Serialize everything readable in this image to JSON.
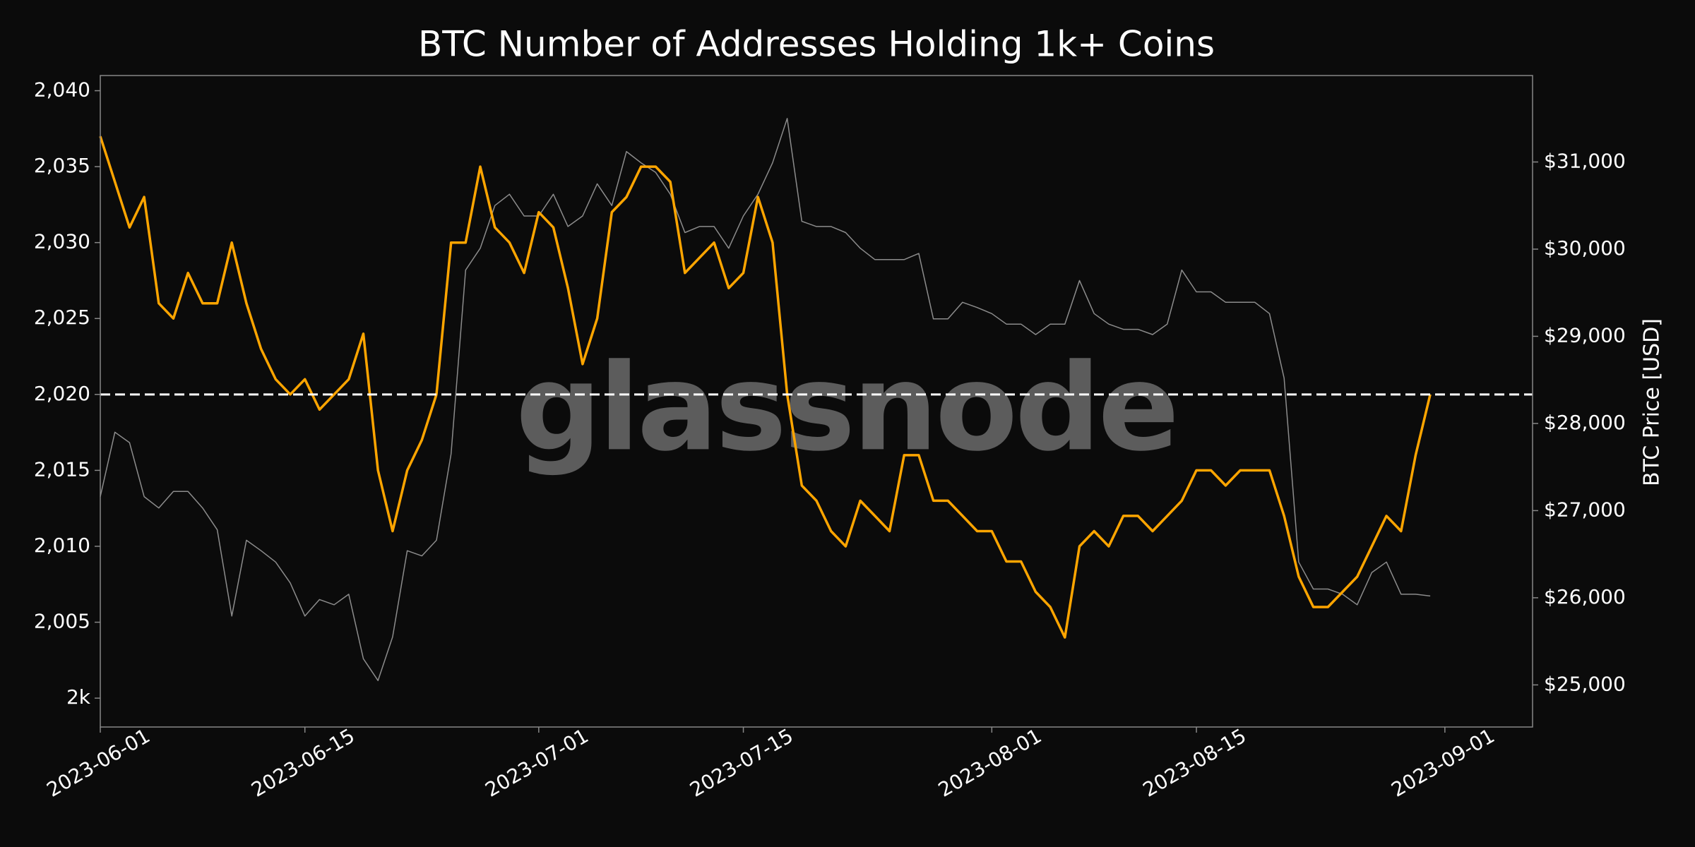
{
  "chart_data": {
    "type": "line",
    "title": "BTC Number of Addresses Holding 1k+ Coins",
    "watermark": "glassnode",
    "y2label": "BTC Price [USD]",
    "x": [
      "2023-06-01",
      "2023-06-02",
      "2023-06-03",
      "2023-06-04",
      "2023-06-05",
      "2023-06-06",
      "2023-06-07",
      "2023-06-08",
      "2023-06-09",
      "2023-06-10",
      "2023-06-11",
      "2023-06-12",
      "2023-06-13",
      "2023-06-14",
      "2023-06-15",
      "2023-06-16",
      "2023-06-17",
      "2023-06-18",
      "2023-06-19",
      "2023-06-20",
      "2023-06-21",
      "2023-06-22",
      "2023-06-23",
      "2023-06-24",
      "2023-06-25",
      "2023-06-26",
      "2023-06-27",
      "2023-06-28",
      "2023-06-29",
      "2023-06-30",
      "2023-07-01",
      "2023-07-02",
      "2023-07-03",
      "2023-07-04",
      "2023-07-05",
      "2023-07-06",
      "2023-07-07",
      "2023-07-08",
      "2023-07-09",
      "2023-07-10",
      "2023-07-11",
      "2023-07-12",
      "2023-07-13",
      "2023-07-14",
      "2023-07-15",
      "2023-07-16",
      "2023-07-17",
      "2023-07-18",
      "2023-07-19",
      "2023-07-20",
      "2023-07-21",
      "2023-07-22",
      "2023-07-23",
      "2023-07-24",
      "2023-07-25",
      "2023-07-26",
      "2023-07-27",
      "2023-07-28",
      "2023-07-29",
      "2023-07-30",
      "2023-07-31",
      "2023-08-01",
      "2023-08-02",
      "2023-08-03",
      "2023-08-04",
      "2023-08-05",
      "2023-08-06",
      "2023-08-07",
      "2023-08-08",
      "2023-08-09",
      "2023-08-10",
      "2023-08-11",
      "2023-08-12",
      "2023-08-13",
      "2023-08-14",
      "2023-08-15",
      "2023-08-16",
      "2023-08-17",
      "2023-08-18",
      "2023-08-19",
      "2023-08-20",
      "2023-08-21",
      "2023-08-22",
      "2023-08-23",
      "2023-08-24",
      "2023-08-25",
      "2023-08-26",
      "2023-08-27",
      "2023-08-28",
      "2023-08-29",
      "2023-08-30",
      "2023-08-31"
    ],
    "series": [
      {
        "color": "#8c8c8c",
        "axis": "y2",
        "values": [
          27160,
          27900,
          27780,
          27160,
          27030,
          27220,
          27220,
          27030,
          26780,
          25790,
          26660,
          26540,
          26410,
          26170,
          25790,
          25980,
          25920,
          26040,
          25300,
          25050,
          25550,
          26540,
          26480,
          26660,
          27650,
          29760,
          30010,
          30500,
          30630,
          30380,
          30380,
          30630,
          30260,
          30380,
          30750,
          30500,
          31120,
          30990,
          30880,
          30630,
          30190,
          30260,
          30260,
          30010,
          30380,
          30630,
          30990,
          31500,
          30320,
          30260,
          30260,
          30190,
          30010,
          29880,
          29880,
          29880,
          29950,
          29200,
          29200,
          29390,
          29330,
          29260,
          29140,
          29140,
          29020,
          29140,
          29140,
          29640,
          29260,
          29140,
          29080,
          29080,
          29020,
          29140,
          29760,
          29510,
          29510,
          29390,
          29390,
          29390,
          29260,
          28520,
          26410,
          26100,
          26100,
          26040,
          25920,
          26290,
          26410,
          26040,
          26040,
          26020
        ]
      },
      {
        "color": "#ffa500",
        "values": [
          2037,
          2034,
          2031,
          2033,
          2026,
          2025,
          2028,
          2026,
          2026,
          2030,
          2026,
          2023,
          2021,
          2020,
          2021,
          2019,
          2020,
          2021,
          2024,
          2015,
          2011,
          2015,
          2017,
          2020,
          2030,
          2030,
          2035,
          2031,
          2030,
          2028,
          2032,
          2031,
          2027,
          2022,
          2025,
          2032,
          2033,
          2035,
          2035,
          2034,
          2028,
          2029,
          2030,
          2027,
          2028,
          2033,
          2030,
          2020,
          2014,
          2013,
          2011,
          2010,
          2013,
          2012,
          2011,
          2016,
          2016,
          2013,
          2013,
          2012,
          2011,
          2011,
          2009,
          2009,
          2007,
          2006,
          2004,
          2010,
          2011,
          2010,
          2012,
          2012,
          2011,
          2012,
          2013,
          2015,
          2015,
          2014,
          2015,
          2015,
          2015,
          2012,
          2008,
          2006,
          2006,
          2007,
          2008,
          2010,
          2012,
          2011,
          2016,
          2020
        ]
      }
    ],
    "hlines": [
      2020
    ],
    "xlim": [
      "2023-06-01",
      "2023-09-07"
    ],
    "xticks": [
      "2023-06-01",
      "2023-06-15",
      "2023-07-01",
      "2023-07-15",
      "2023-08-01",
      "2023-08-15",
      "2023-09-01"
    ],
    "ylim": [
      1998.1,
      2041
    ],
    "yticks": [
      {
        "value": 2000,
        "label": "2k"
      },
      {
        "value": 2005,
        "label": "2,005"
      },
      {
        "value": 2010,
        "label": "2,010"
      },
      {
        "value": 2015,
        "label": "2,015"
      },
      {
        "value": 2020,
        "label": "2,020"
      },
      {
        "value": 2025,
        "label": "2,025"
      },
      {
        "value": 2030,
        "label": "2,030"
      },
      {
        "value": 2035,
        "label": "2,035"
      },
      {
        "value": 2040,
        "label": "2,040"
      }
    ],
    "y2lim": [
      24517,
      31992
    ],
    "y2ticks": [
      {
        "value": 25000,
        "label": "$25,000"
      },
      {
        "value": 26000,
        "label": "$26,000"
      },
      {
        "value": 27000,
        "label": "$27,000"
      },
      {
        "value": 28000,
        "label": "$28,000"
      },
      {
        "value": 29000,
        "label": "$29,000"
      },
      {
        "value": 30000,
        "label": "$30,000"
      },
      {
        "value": 31000,
        "label": "$31,000"
      }
    ]
  }
}
